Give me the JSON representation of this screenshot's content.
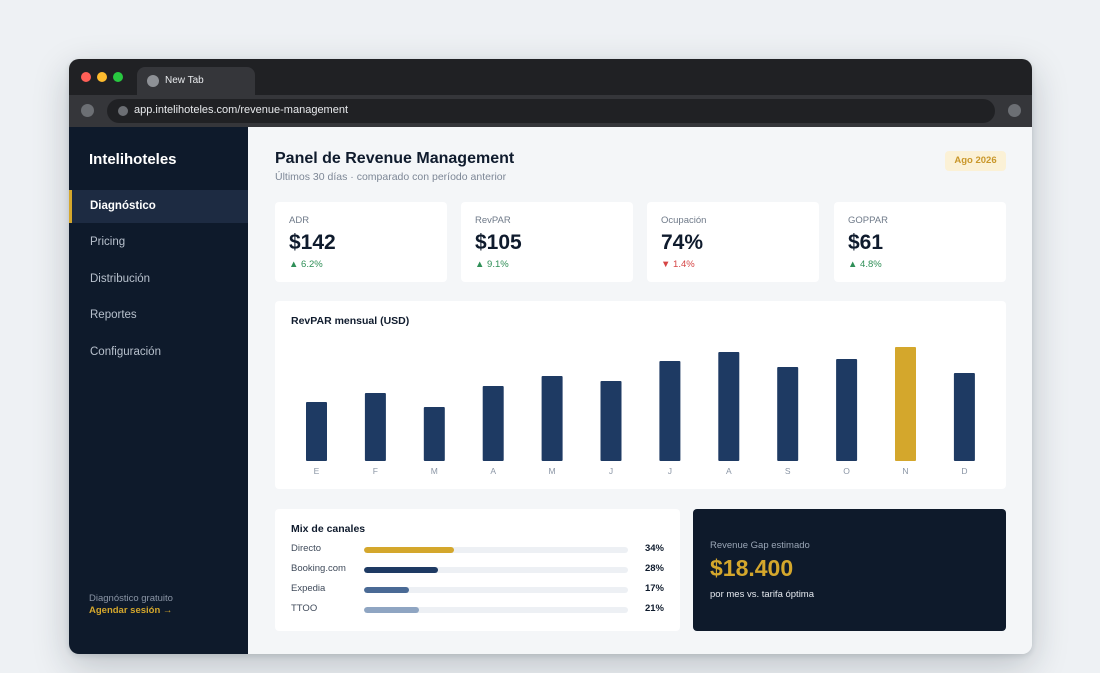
{
  "browser": {
    "tab_title": "New Tab",
    "url": "app.intelihoteles.com/revenue-management"
  },
  "sidebar": {
    "brand": "Intelihoteles",
    "items": [
      {
        "label": "Diagnóstico",
        "active": true
      },
      {
        "label": "Pricing",
        "active": false
      },
      {
        "label": "Distribución",
        "active": false
      },
      {
        "label": "Reportes",
        "active": false
      },
      {
        "label": "Configuración",
        "active": false
      }
    ],
    "footer_label": "Diagnóstico gratuito",
    "footer_link": "Agendar sesión →"
  },
  "header": {
    "title": "Panel de Revenue Management",
    "subtitle": "Últimos 30 días · comparado con período anterior",
    "period_badge": "Ago 2026"
  },
  "kpis": [
    {
      "label": "ADR",
      "value": "$142",
      "delta": "▲ 6.2%",
      "trend": "up"
    },
    {
      "label": "RevPAR",
      "value": "$105",
      "delta": "▲ 9.1%",
      "trend": "up"
    },
    {
      "label": "Ocupación",
      "value": "74%",
      "delta": "▼ 1.4%",
      "trend": "down"
    },
    {
      "label": "GOPPAR",
      "value": "$61",
      "delta": "▲ 4.8%",
      "trend": "up"
    }
  ],
  "chart_data": {
    "type": "bar",
    "title": "RevPAR mensual (USD)",
    "categories": [
      "E",
      "F",
      "M",
      "A",
      "M",
      "J",
      "J",
      "A",
      "S",
      "O",
      "N",
      "D"
    ],
    "values": [
      59,
      68,
      54,
      75,
      85,
      80,
      100,
      109,
      94,
      102,
      114,
      88
    ],
    "highlight_index": 10,
    "colors": {
      "bar": "#1e3a63",
      "highlight": "#d4a72c"
    }
  },
  "channel_mix": {
    "title": "Mix de canales",
    "channels": [
      {
        "name": "Directo",
        "pct_label": "34%",
        "fraction": 0.34,
        "color": "#d4a72c"
      },
      {
        "name": "Booking.com",
        "pct_label": "28%",
        "fraction": 0.28,
        "color": "#1e3a63"
      },
      {
        "name": "Expedia",
        "pct_label": "17%",
        "fraction": 0.17,
        "color": "#4a6a95"
      },
      {
        "name": "TTOO",
        "pct_label": "21%",
        "fraction": 0.21,
        "color": "#8fa5c2"
      }
    ]
  },
  "revenue_gap": {
    "label": "Revenue Gap estimado",
    "value": "$18.400",
    "subtitle": "por mes vs. tarifa óptima"
  }
}
